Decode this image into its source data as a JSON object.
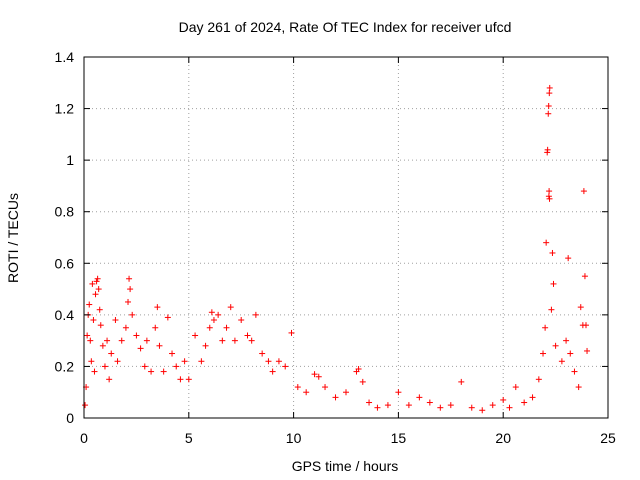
{
  "chart_data": {
    "type": "scatter",
    "title": "Day 261 of 2024, Rate Of TEC Index for receiver ufcd",
    "xlabel": "GPS time / hours",
    "ylabel": "ROTI / TECUs",
    "xlim": [
      0,
      25
    ],
    "ylim": [
      0,
      1.4
    ],
    "xticks": [
      0,
      5,
      10,
      15,
      20,
      25
    ],
    "yticks": [
      0,
      0.2,
      0.4,
      0.6,
      0.8,
      1,
      1.2,
      1.4
    ],
    "xtick_labels": [
      "0",
      "5",
      "10",
      "15",
      "20",
      "25"
    ],
    "ytick_labels": [
      "0",
      "0.2",
      "0.4",
      "0.6",
      "0.8",
      "1",
      "1.2",
      "1.4"
    ],
    "grid": true,
    "marker": "+",
    "color": "#ff0000",
    "series": [
      {
        "points": [
          [
            0.05,
            0.05
          ],
          [
            0.1,
            0.12
          ],
          [
            0.15,
            0.32
          ],
          [
            0.2,
            0.4
          ],
          [
            0.25,
            0.44
          ],
          [
            0.3,
            0.3
          ],
          [
            0.35,
            0.22
          ],
          [
            0.4,
            0.52
          ],
          [
            0.45,
            0.38
          ],
          [
            0.5,
            0.18
          ],
          [
            0.55,
            0.48
          ],
          [
            0.6,
            0.53
          ],
          [
            0.65,
            0.54
          ],
          [
            0.7,
            0.5
          ],
          [
            0.75,
            0.42
          ],
          [
            0.8,
            0.36
          ],
          [
            0.9,
            0.28
          ],
          [
            1.0,
            0.2
          ],
          [
            1.1,
            0.3
          ],
          [
            1.2,
            0.15
          ],
          [
            1.3,
            0.25
          ],
          [
            1.5,
            0.38
          ],
          [
            1.6,
            0.22
          ],
          [
            1.8,
            0.3
          ],
          [
            2.0,
            0.35
          ],
          [
            2.1,
            0.45
          ],
          [
            2.15,
            0.54
          ],
          [
            2.2,
            0.5
          ],
          [
            2.3,
            0.4
          ],
          [
            2.5,
            0.32
          ],
          [
            2.7,
            0.27
          ],
          [
            2.9,
            0.2
          ],
          [
            3.0,
            0.3
          ],
          [
            3.2,
            0.18
          ],
          [
            3.4,
            0.35
          ],
          [
            3.5,
            0.43
          ],
          [
            3.6,
            0.28
          ],
          [
            3.8,
            0.18
          ],
          [
            4.0,
            0.39
          ],
          [
            4.2,
            0.25
          ],
          [
            4.4,
            0.2
          ],
          [
            4.6,
            0.15
          ],
          [
            4.8,
            0.22
          ],
          [
            5.0,
            0.15
          ],
          [
            5.3,
            0.32
          ],
          [
            5.6,
            0.22
          ],
          [
            5.8,
            0.28
          ],
          [
            6.0,
            0.35
          ],
          [
            6.1,
            0.41
          ],
          [
            6.2,
            0.38
          ],
          [
            6.4,
            0.4
          ],
          [
            6.6,
            0.3
          ],
          [
            6.8,
            0.35
          ],
          [
            7.0,
            0.43
          ],
          [
            7.2,
            0.3
          ],
          [
            7.5,
            0.38
          ],
          [
            7.8,
            0.32
          ],
          [
            8.0,
            0.3
          ],
          [
            8.2,
            0.4
          ],
          [
            8.5,
            0.25
          ],
          [
            8.8,
            0.22
          ],
          [
            9.0,
            0.18
          ],
          [
            9.3,
            0.22
          ],
          [
            9.6,
            0.2
          ],
          [
            9.9,
            0.33
          ],
          [
            10.2,
            0.12
          ],
          [
            10.6,
            0.1
          ],
          [
            11.0,
            0.17
          ],
          [
            11.2,
            0.16
          ],
          [
            11.5,
            0.12
          ],
          [
            12.0,
            0.08
          ],
          [
            12.5,
            0.1
          ],
          [
            13.0,
            0.18
          ],
          [
            13.1,
            0.19
          ],
          [
            13.3,
            0.14
          ],
          [
            13.6,
            0.06
          ],
          [
            14.0,
            0.04
          ],
          [
            14.5,
            0.05
          ],
          [
            15.0,
            0.1
          ],
          [
            15.5,
            0.05
          ],
          [
            16.0,
            0.08
          ],
          [
            16.5,
            0.06
          ],
          [
            17.0,
            0.04
          ],
          [
            17.5,
            0.05
          ],
          [
            18.0,
            0.14
          ],
          [
            18.5,
            0.04
          ],
          [
            19.0,
            0.03
          ],
          [
            19.5,
            0.05
          ],
          [
            20.0,
            0.07
          ],
          [
            20.3,
            0.04
          ],
          [
            20.6,
            0.12
          ],
          [
            21.0,
            0.06
          ],
          [
            21.4,
            0.08
          ],
          [
            21.7,
            0.15
          ],
          [
            21.9,
            0.25
          ],
          [
            22.0,
            0.35
          ],
          [
            22.05,
            0.68
          ],
          [
            22.1,
            1.03
          ],
          [
            22.12,
            1.04
          ],
          [
            22.15,
            1.18
          ],
          [
            22.17,
            1.21
          ],
          [
            22.2,
            1.26
          ],
          [
            22.22,
            1.28
          ],
          [
            22.18,
            0.86
          ],
          [
            22.19,
            0.88
          ],
          [
            22.21,
            0.85
          ],
          [
            22.3,
            0.42
          ],
          [
            22.35,
            0.64
          ],
          [
            22.4,
            0.52
          ],
          [
            22.5,
            0.28
          ],
          [
            22.8,
            0.22
          ],
          [
            23.0,
            0.3
          ],
          [
            23.1,
            0.62
          ],
          [
            23.2,
            0.25
          ],
          [
            23.4,
            0.18
          ],
          [
            23.6,
            0.12
          ],
          [
            23.7,
            0.43
          ],
          [
            23.8,
            0.36
          ],
          [
            23.85,
            0.88
          ],
          [
            23.9,
            0.55
          ],
          [
            23.95,
            0.36
          ],
          [
            24.0,
            0.26
          ]
        ]
      }
    ]
  }
}
